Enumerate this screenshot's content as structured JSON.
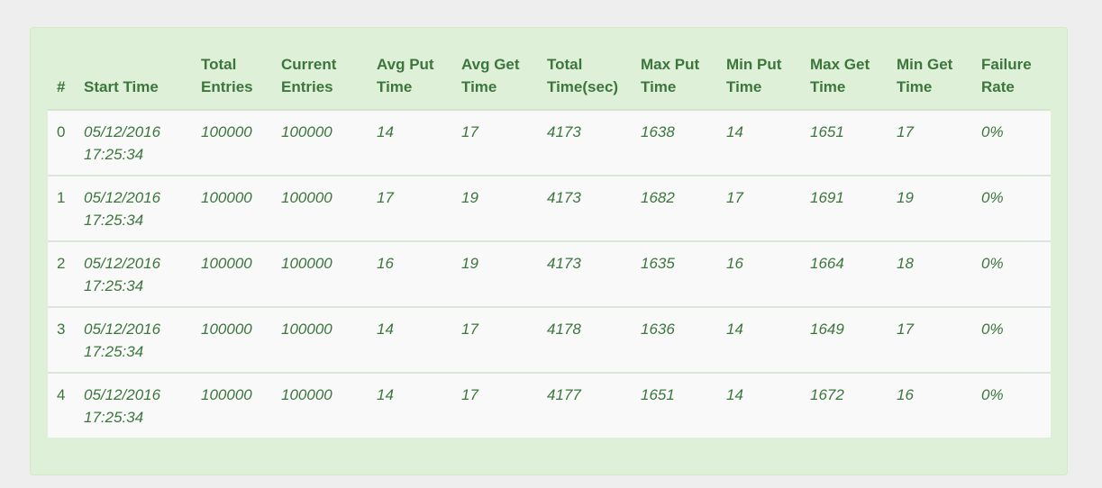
{
  "table": {
    "headers": [
      "#",
      "Start Time",
      "Total Entries",
      "Current Entries",
      "Avg Put Time",
      "Avg Get Time",
      "Total Time(sec)",
      "Max Put Time",
      "Min Put Time",
      "Max Get Time",
      "Min Get Time",
      "Failure Rate"
    ],
    "rows": [
      [
        "0",
        "05/12/2016 17:25:34",
        "100000",
        "100000",
        "14",
        "17",
        "4173",
        "1638",
        "14",
        "1651",
        "17",
        "0%"
      ],
      [
        "1",
        "05/12/2016 17:25:34",
        "100000",
        "100000",
        "17",
        "19",
        "4173",
        "1682",
        "17",
        "1691",
        "19",
        "0%"
      ],
      [
        "2",
        "05/12/2016 17:25:34",
        "100000",
        "100000",
        "16",
        "19",
        "4173",
        "1635",
        "16",
        "1664",
        "18",
        "0%"
      ],
      [
        "3",
        "05/12/2016 17:25:34",
        "100000",
        "100000",
        "14",
        "17",
        "4178",
        "1636",
        "14",
        "1649",
        "17",
        "0%"
      ],
      [
        "4",
        "05/12/2016 17:25:34",
        "100000",
        "100000",
        "14",
        "17",
        "4177",
        "1651",
        "14",
        "1672",
        "16",
        "0%"
      ]
    ]
  },
  "colors": {
    "panel_background": "#dff0d8",
    "text": "#3c763d",
    "row_background": "#f9f9f9",
    "page_background": "#eeeeee"
  }
}
